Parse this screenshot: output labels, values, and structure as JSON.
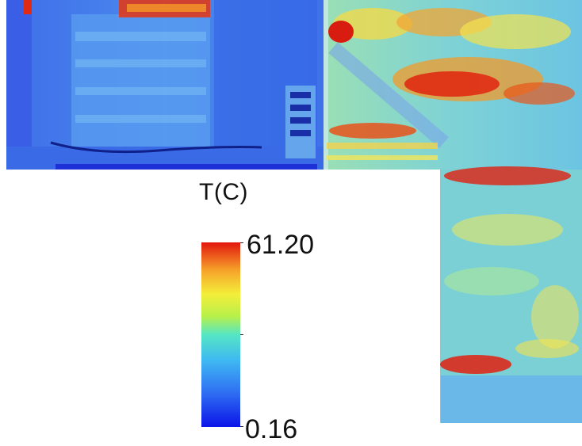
{
  "legend": {
    "title": "T(C)",
    "max_label": "61.20",
    "min_label": "0.16"
  },
  "palette": {
    "low": "#1f2fd8",
    "mid_low": "#3aa0f0",
    "mid": "#5ee0c0",
    "mid_high": "#f2ea3a",
    "high": "#e01a12"
  }
}
